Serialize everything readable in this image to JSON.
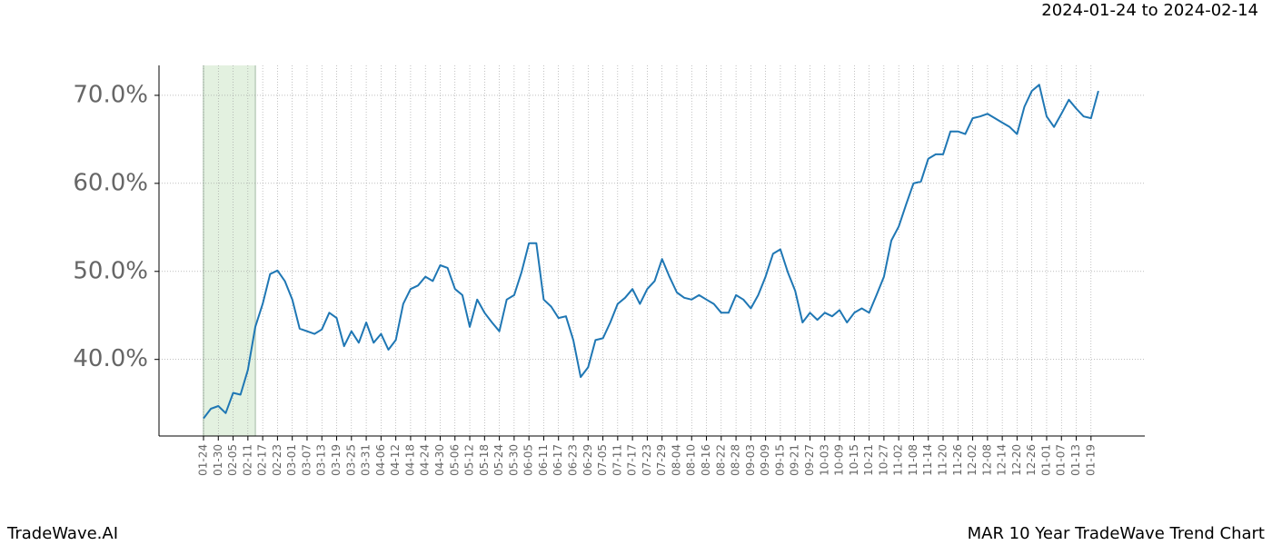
{
  "chart_data": {
    "type": "line",
    "title": "2024-01-24 to 2024-02-14",
    "footer_left": "TradeWave.AI",
    "footer_right": "MAR 10 Year TradeWave Trend Chart",
    "categories": [
      "01-24",
      null,
      "01-30",
      null,
      "02-05",
      null,
      "02-11",
      null,
      "02-17",
      null,
      "02-23",
      null,
      "03-01",
      null,
      "03-07",
      null,
      "03-13",
      null,
      "03-19",
      null,
      "03-25",
      null,
      "03-31",
      null,
      "04-06",
      null,
      "04-12",
      null,
      "04-18",
      null,
      "04-24",
      null,
      "04-30",
      null,
      "05-06",
      null,
      "05-12",
      null,
      "05-18",
      null,
      "05-24",
      null,
      "05-30",
      null,
      "06-05",
      null,
      "06-11",
      null,
      "06-17",
      null,
      "06-23",
      null,
      "06-29",
      null,
      "07-05",
      null,
      "07-11",
      null,
      "07-17",
      null,
      "07-23",
      null,
      "07-29",
      null,
      "08-04",
      null,
      "08-10",
      null,
      "08-16",
      null,
      "08-22",
      null,
      "08-28",
      null,
      "09-03",
      null,
      "09-09",
      null,
      "09-15",
      null,
      "09-21",
      null,
      "09-27",
      null,
      "10-03",
      null,
      "10-09",
      null,
      "10-15",
      null,
      "10-21",
      null,
      "10-27",
      null,
      "11-02",
      null,
      "11-08",
      null,
      "11-14",
      null,
      "11-20",
      null,
      "11-26",
      null,
      "12-02",
      null,
      "12-08",
      null,
      "12-14",
      null,
      "12-20",
      null,
      "12-26",
      null,
      "01-01",
      null,
      "01-07",
      null,
      "01-13",
      null,
      "01-19",
      null
    ],
    "series": [
      {
        "color": "#1f77b4",
        "values": [
          33.3,
          34.4,
          34.7,
          33.9,
          36.2,
          36.0,
          38.8,
          43.7,
          46.3,
          49.7,
          50.1,
          48.9,
          46.8,
          43.5,
          43.2,
          42.9,
          43.4,
          45.3,
          44.7,
          41.5,
          43.2,
          41.9,
          44.2,
          41.9,
          42.9,
          41.1,
          42.2,
          46.3,
          48.0,
          48.4,
          49.4,
          48.9,
          50.7,
          50.4,
          48.0,
          47.3,
          43.7,
          46.8,
          45.3,
          44.2,
          43.2,
          46.8,
          47.3,
          49.9,
          53.2,
          53.2,
          46.8,
          46.0,
          44.7,
          44.9,
          42.2,
          38.0,
          39.1,
          42.2,
          42.4,
          44.2,
          46.3,
          47.0,
          48.0,
          46.3,
          48.0,
          48.9,
          51.4,
          49.4,
          47.6,
          47.0,
          46.8,
          47.3,
          46.8,
          46.3,
          45.3,
          45.3,
          47.3,
          46.8,
          45.8,
          47.3,
          49.4,
          52.0,
          52.5,
          49.9,
          47.8,
          44.2,
          45.3,
          44.5,
          45.3,
          44.9,
          45.6,
          44.2,
          45.3,
          45.8,
          45.3,
          47.3,
          49.4,
          53.5,
          55.1,
          57.6,
          60.0,
          60.2,
          62.8,
          63.3,
          63.3,
          65.9,
          65.9,
          65.6,
          67.4,
          67.6,
          67.9,
          67.4,
          66.9,
          66.4,
          65.6,
          68.7,
          70.5,
          71.2,
          67.6,
          66.4,
          67.9,
          69.5,
          68.5,
          67.6,
          67.4,
          70.5
        ]
      }
    ],
    "highlight": {
      "span": [
        0,
        7
      ],
      "color": "#e3f1e0"
    },
    "ylim": [
      31.3,
      73.4
    ],
    "yticks": [
      {
        "value": 40,
        "label": "40.0%"
      },
      {
        "value": 50,
        "label": "50.0%"
      },
      {
        "value": 60,
        "label": "60.0%"
      },
      {
        "value": 70,
        "label": "70.0%"
      }
    ],
    "grid": true
  }
}
